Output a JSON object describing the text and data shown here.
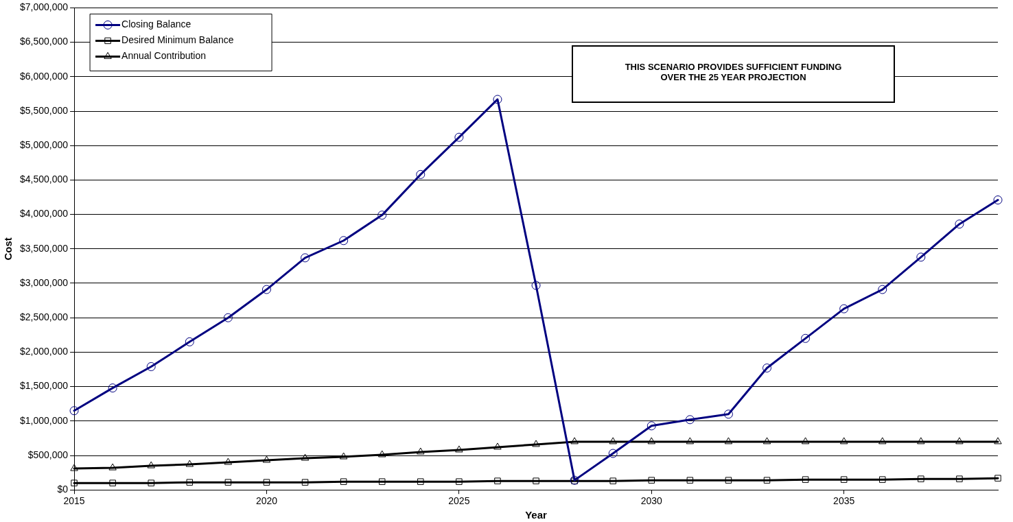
{
  "chart_data": {
    "type": "line",
    "xlabel": "Year",
    "ylabel": "Cost",
    "x": [
      2015,
      2016,
      2017,
      2018,
      2019,
      2020,
      2021,
      2022,
      2023,
      2024,
      2025,
      2026,
      2027,
      2028,
      2029,
      2030,
      2031,
      2032,
      2033,
      2034,
      2035,
      2036,
      2037,
      2038,
      2039
    ],
    "series": [
      {
        "name": "Closing Balance",
        "color": "#000080",
        "marker": "circle",
        "values": [
          1150000,
          1480000,
          1790000,
          2150000,
          2500000,
          2910000,
          3370000,
          3620000,
          3990000,
          4580000,
          5120000,
          5670000,
          2970000,
          140000,
          530000,
          930000,
          1020000,
          1100000,
          1770000,
          2200000,
          2630000,
          2910000,
          3380000,
          3860000,
          4210000
        ]
      },
      {
        "name": "Desired Minimum Balance",
        "color": "#000000",
        "marker": "square",
        "values": [
          100000,
          100000,
          100000,
          110000,
          110000,
          110000,
          110000,
          120000,
          120000,
          120000,
          120000,
          130000,
          130000,
          130000,
          130000,
          140000,
          140000,
          140000,
          140000,
          150000,
          150000,
          150000,
          160000,
          160000,
          170000
        ]
      },
      {
        "name": "Annual Contribution",
        "color": "#000000",
        "marker": "triangle",
        "values": [
          310000,
          320000,
          350000,
          370000,
          400000,
          430000,
          460000,
          480000,
          510000,
          550000,
          580000,
          620000,
          660000,
          700000,
          700000,
          700000,
          700000,
          700000,
          700000,
          700000,
          700000,
          700000,
          700000,
          700000,
          700000
        ]
      }
    ],
    "xlim": [
      2015,
      2039
    ],
    "xticks": [
      2015,
      2020,
      2025,
      2030,
      2035
    ],
    "ylim": [
      0,
      7000000
    ],
    "yticks": [
      {
        "value": 0,
        "label": "$0"
      },
      {
        "value": 500000,
        "label": "$500,000"
      },
      {
        "value": 1000000,
        "label": "$1,000,000"
      },
      {
        "value": 1500000,
        "label": "$1,500,000"
      },
      {
        "value": 2000000,
        "label": "$2,000,000"
      },
      {
        "value": 2500000,
        "label": "$2,500,000"
      },
      {
        "value": 3000000,
        "label": "$3,000,000"
      },
      {
        "value": 3500000,
        "label": "$3,500,000"
      },
      {
        "value": 4000000,
        "label": "$4,000,000"
      },
      {
        "value": 4500000,
        "label": "$4,500,000"
      },
      {
        "value": 5000000,
        "label": "$5,000,000"
      },
      {
        "value": 5500000,
        "label": "$5,500,000"
      },
      {
        "value": 6000000,
        "label": "$6,000,000"
      },
      {
        "value": 6500000,
        "label": "$6,500,000"
      },
      {
        "value": 7000000,
        "label": "$7,000,000"
      }
    ],
    "grid": "y",
    "legend": "top left",
    "line_style": "solid",
    "annotations": [
      "THIS SCENARIO PROVIDES SUFFICIENT FUNDING\nOVER THE 25 YEAR PROJECTION"
    ]
  }
}
